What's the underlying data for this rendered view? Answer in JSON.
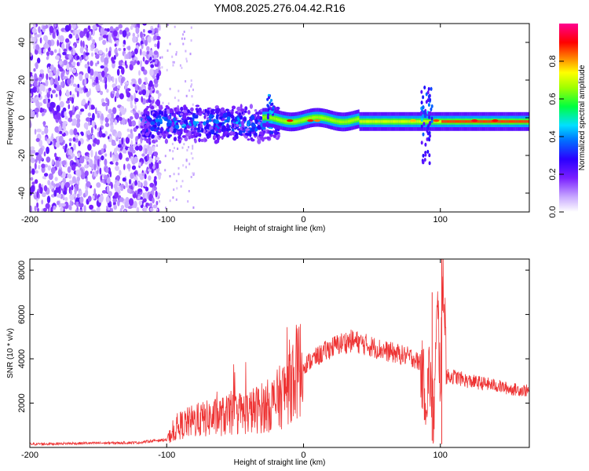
{
  "title": "YM08.2025.276.04.42.R16",
  "chart_data": [
    {
      "type": "heatmap",
      "name": "spectrogram",
      "xlabel": "Height of straight line (km)",
      "ylabel": "Frequency (Hz)",
      "xlim": [
        -200,
        165
      ],
      "ylim": [
        -50,
        50
      ],
      "xticks": [
        -200,
        -100,
        0,
        100
      ],
      "yticks": [
        -40,
        -20,
        0,
        20,
        40
      ],
      "colorbar": {
        "label": "Normalized spectral amplitude",
        "range": [
          0,
          1
        ],
        "ticks": [
          0.0,
          0.2,
          0.4,
          0.6,
          0.8
        ],
        "tick_labels": [
          "0.0",
          "0.2",
          "0.4",
          "0.6",
          "0.8"
        ],
        "colors": [
          "#ffffff",
          "#b080ff",
          "#6000ff",
          "#0000ff",
          "#00ffff",
          "#00ff00",
          "#ffff00",
          "#ff8000",
          "#ff0000",
          "#ff00a0"
        ]
      },
      "features": [
        {
          "region": "noise",
          "x_range": [
            -200,
            -105
          ],
          "freq_range": [
            -50,
            50
          ],
          "amplitude": 0.1
        },
        {
          "region": "signal-weak",
          "x_range": [
            -115,
            -20
          ],
          "center_freq": -5,
          "amplitude": 0.3
        },
        {
          "region": "signal-strong",
          "x_range": [
            -20,
            165
          ],
          "center_freq": -2,
          "amplitude": 0.8
        },
        {
          "region": "ring-spike",
          "x_range": [
            85,
            95
          ],
          "freq_range": [
            -25,
            18
          ],
          "amplitude": 0.6
        }
      ]
    },
    {
      "type": "line",
      "name": "snr",
      "xlabel": "Height of straight line (km)",
      "ylabel": "SNR (10 * v/v)",
      "xlim": [
        -200,
        165
      ],
      "ylim": [
        0,
        8500
      ],
      "xticks": [
        -200,
        -100,
        0,
        100
      ],
      "yticks": [
        2000,
        4000,
        6000,
        8000
      ],
      "color": "#ee3333",
      "x": [
        -200,
        -180,
        -160,
        -140,
        -120,
        -110,
        -100,
        -95,
        -90,
        -80,
        -70,
        -60,
        -50,
        -40,
        -30,
        -25,
        -20,
        -15,
        -10,
        -5,
        0,
        10,
        20,
        30,
        35,
        40,
        50,
        60,
        70,
        80,
        85,
        90,
        92,
        95,
        98,
        100,
        102,
        105,
        110,
        120,
        130,
        140,
        150,
        165
      ],
      "y": [
        150,
        170,
        190,
        200,
        220,
        300,
        350,
        700,
        1000,
        1200,
        1300,
        1400,
        1500,
        1600,
        1800,
        1900,
        2100,
        2400,
        3000,
        3400,
        3700,
        4100,
        4500,
        4750,
        4800,
        4750,
        4550,
        4350,
        4200,
        4050,
        3800,
        2200,
        3500,
        1200,
        6300,
        3000,
        8000,
        3200,
        3200,
        3000,
        2900,
        2800,
        2650,
        2550
      ]
    }
  ]
}
